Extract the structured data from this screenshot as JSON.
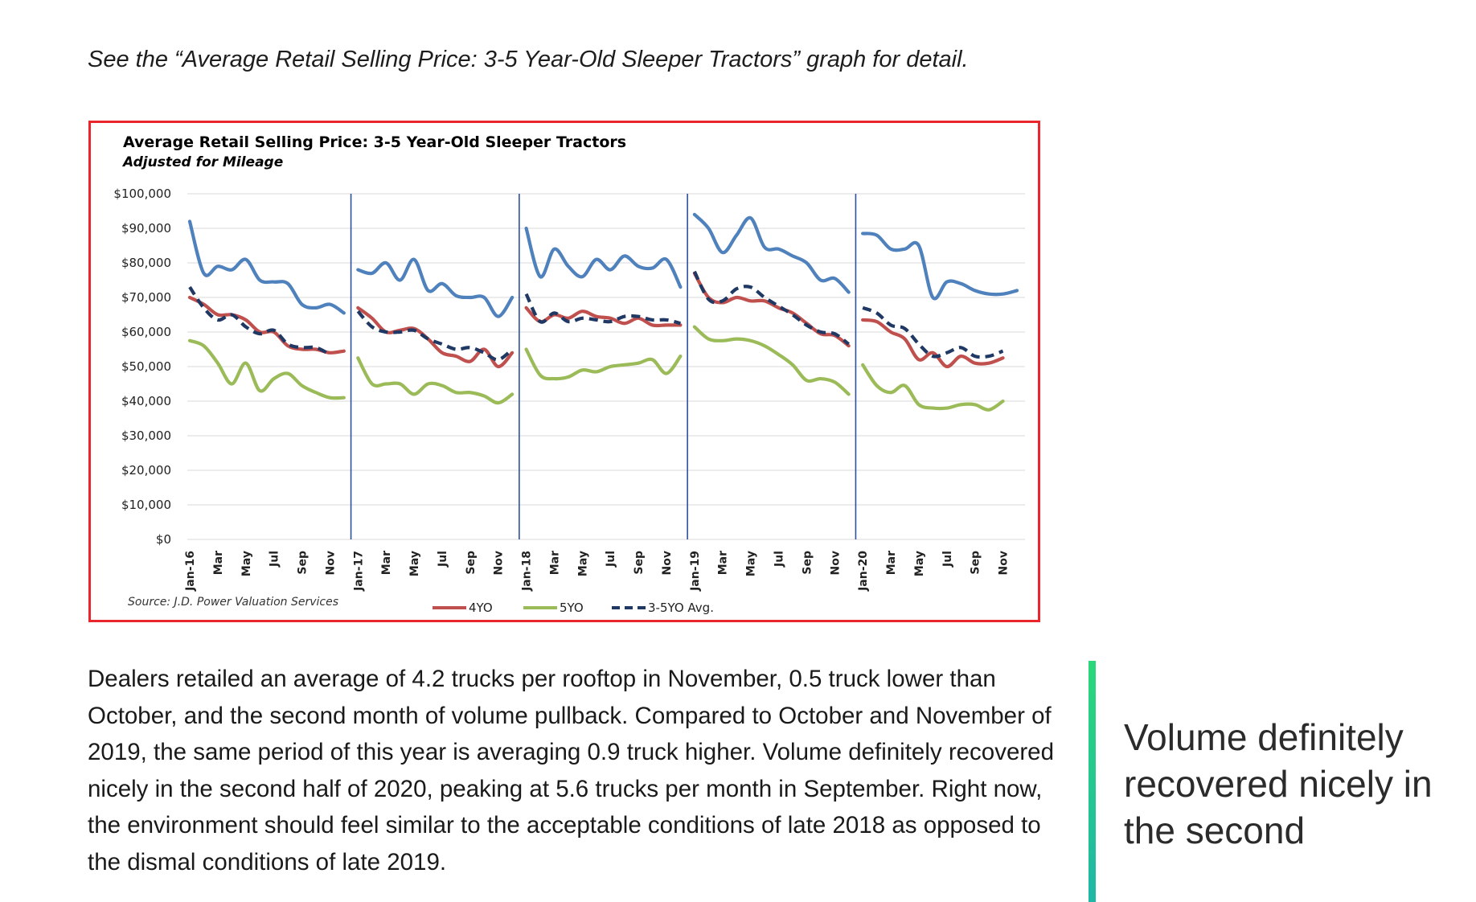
{
  "intro_text": "See the “Average Retail Selling Price: 3-5 Year-Old Sleeper Tractors” graph for detail.",
  "chart_data": {
    "type": "line",
    "title": "Average Retail Selling Price: 3-5 Year-Old Sleeper Tractors",
    "subtitle": "Adjusted for Mileage",
    "source": "Source: J.D. Power Valuation Services",
    "ylim": [
      0,
      100000
    ],
    "y_ticks": [
      "$100,000",
      "$90,000",
      "$80,000",
      "$70,000",
      "$60,000",
      "$50,000",
      "$40,000",
      "$30,000",
      "$20,000",
      "$10,000",
      "$0"
    ],
    "x_tick_labels": [
      "Jan-16",
      "Mar",
      "May",
      "Jul",
      "Sep",
      "Nov",
      "Jan-17",
      "Mar",
      "May",
      "Jul",
      "Sep",
      "Nov",
      "Jan-18",
      "Mar",
      "May",
      "Jul",
      "Sep",
      "Nov",
      "Jan-19",
      "Mar",
      "May",
      "Jul",
      "Sep",
      "Nov",
      "Jan-20",
      "Mar",
      "May",
      "Jul",
      "Sep",
      "Nov"
    ],
    "year_dividers_after_month_index": [
      11,
      23,
      35,
      47
    ],
    "grid": "horizontal",
    "legend_position": "bottom",
    "series": [
      {
        "name": "",
        "color": "#4f81bd",
        "style": "solid",
        "segments": [
          [
            92000,
            77000,
            79000,
            78000,
            81000,
            75000,
            74500,
            74000,
            68000,
            67000,
            68000,
            65500
          ],
          [
            78000,
            77000,
            80000,
            75000,
            81000,
            72000,
            74000,
            70500,
            70000,
            70000,
            64500,
            70000
          ],
          [
            90000,
            76000,
            84000,
            79000,
            76000,
            81000,
            78000,
            82000,
            79000,
            78500,
            81000,
            73000
          ],
          [
            94000,
            90000,
            83000,
            88000,
            93000,
            84500,
            84000,
            82000,
            80000,
            75000,
            75500,
            71500
          ],
          [
            88500,
            88000,
            84000,
            84000,
            85000,
            70000,
            74500,
            74000,
            72000,
            71000,
            71000,
            72000
          ]
        ]
      },
      {
        "name": "4YO",
        "color": "#c0504d",
        "style": "solid",
        "segments": [
          [
            70000,
            68000,
            65000,
            65000,
            63500,
            60000,
            60000,
            56000,
            55000,
            55000,
            54000,
            54500
          ],
          [
            67000,
            64000,
            60000,
            60500,
            61000,
            58000,
            54000,
            53000,
            51500,
            55000,
            50000,
            54000
          ],
          [
            67000,
            63000,
            65000,
            64000,
            66000,
            64500,
            64000,
            62500,
            64000,
            62000,
            62000,
            62000
          ],
          [
            77000,
            70000,
            68500,
            70000,
            69000,
            69000,
            67000,
            65500,
            62500,
            59500,
            59000,
            56000
          ],
          [
            63500,
            63000,
            60000,
            58000,
            52000,
            54000,
            50000,
            53000,
            51000,
            51000,
            52500,
            null
          ]
        ]
      },
      {
        "name": "5YO",
        "color": "#9bbb59",
        "style": "solid",
        "segments": [
          [
            57500,
            56000,
            51000,
            45000,
            51000,
            43000,
            46500,
            48000,
            44500,
            42500,
            41000,
            41000
          ],
          [
            52500,
            45000,
            45000,
            45000,
            42000,
            45000,
            44500,
            42500,
            42500,
            41500,
            39500,
            42000
          ],
          [
            55000,
            47500,
            46500,
            47000,
            49000,
            48500,
            50000,
            50500,
            51000,
            52000,
            48000,
            53000
          ],
          [
            61500,
            58000,
            57500,
            58000,
            57500,
            56000,
            53500,
            50500,
            46000,
            46500,
            45500,
            42000
          ],
          [
            50500,
            44500,
            42500,
            44500,
            39000,
            38000,
            38000,
            39000,
            39000,
            37500,
            40000,
            null
          ]
        ]
      },
      {
        "name": "3-5YO Avg.",
        "color": "#1f3864",
        "style": "dashed",
        "segments": [
          [
            73000,
            67000,
            63500,
            65000,
            61500,
            59500,
            60500,
            56500,
            55500,
            55500,
            53500,
            null
          ],
          [
            66000,
            61500,
            60000,
            60000,
            60500,
            58000,
            56500,
            55000,
            55500,
            54000,
            52000,
            55000
          ],
          [
            71000,
            63000,
            65500,
            63000,
            64000,
            63500,
            63000,
            64500,
            64500,
            63500,
            63500,
            62500
          ],
          [
            77500,
            69500,
            69000,
            72500,
            73000,
            70000,
            67500,
            65000,
            62000,
            60000,
            59500,
            56500
          ],
          [
            67000,
            65500,
            62000,
            61000,
            56500,
            53000,
            54000,
            55500,
            53000,
            53000,
            54500,
            null
          ]
        ]
      }
    ]
  },
  "body_paragraph": "Dealers retailed an average of 4.2 trucks per rooftop in November, 0.5 truck lower than October, and the second month of volume pullback. Compared to October and November of 2019, the same period of this year is averaging 0.9 truck higher. Volume definitely recovered nicely in the second half of 2020, peaking at 5.6 trucks per month in September. Right now, the environment should feel similar to the acceptable conditions of late 2018 as opposed to the dismal conditions of late 2019.",
  "pull_quote": "Volume definitely recovered nicely in the second"
}
